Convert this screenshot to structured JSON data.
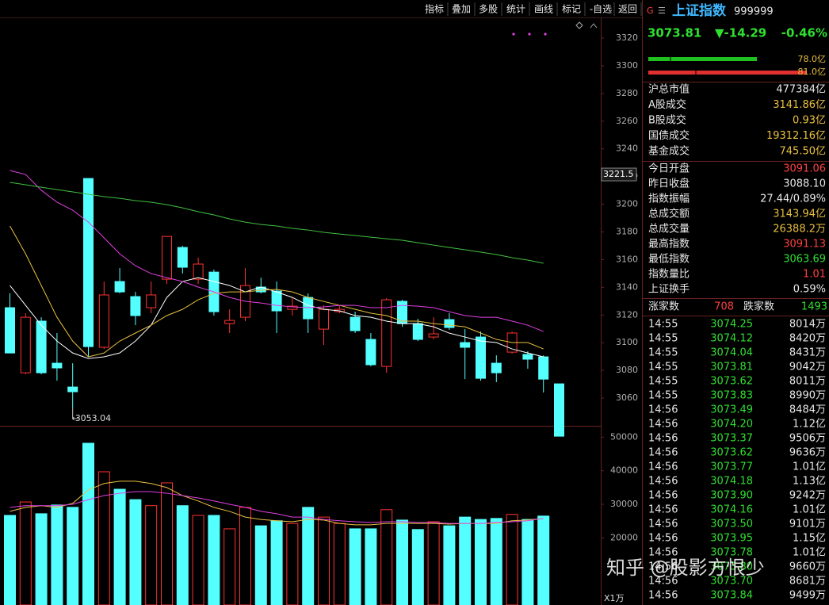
{
  "toolbar": {
    "items": [
      "指标",
      "叠加",
      "多股",
      "统计",
      "画线",
      "标记",
      "-自选",
      "返回"
    ]
  },
  "chart": {
    "type": "candlestick",
    "ylim": [
      3040,
      3334.9
    ],
    "yticks": [
      3060,
      3080,
      3100,
      3120,
      3140,
      3160,
      3180,
      3200,
      3220,
      3240,
      3260,
      3280,
      3300,
      3320
    ],
    "up_color": "#ff3232",
    "down_color": "#54ffff",
    "cursor_price": 3221.5,
    "open": [
      3125.3,
      3078.3,
      3115.6,
      3085.2,
      3068.0,
      3218.6,
      3096.7,
      3144.2,
      3133.3,
      3125.3,
      3145.9,
      3168.8,
      3145.9,
      3151.0,
      3113.8,
      3118.4,
      3140.2,
      3137.3,
      3124.1,
      3132.7,
      3109.8,
      3122.4,
      3118.4,
      3102.4,
      3082.9,
      3129.9,
      3113.8,
      3104.1,
      3116.7,
      3100.1,
      3104.1,
      3085.2,
      3093.2,
      3091.5,
      3089.8,
      3070.3
    ],
    "high": [
      3135.6,
      3121.3,
      3118.4,
      3107.0,
      3085.2,
      3218.6,
      3144.2,
      3153.9,
      3136.7,
      3144.2,
      3176.8,
      3170.0,
      3161.4,
      3152.8,
      3124.1,
      3153.9,
      3147.0,
      3144.2,
      3132.7,
      3135.6,
      3127.0,
      3127.0,
      3122.4,
      3107.0,
      3132.2,
      3131.0,
      3117.3,
      3118.4,
      3121.3,
      3109.8,
      3108.1,
      3090.9,
      3108.1,
      3093.8,
      3090.9,
      3070.3
    ],
    "low": [
      3092.6,
      3077.2,
      3077.2,
      3072.6,
      3053.04,
      3089.8,
      3095.5,
      3135.6,
      3112.7,
      3121.3,
      3142.5,
      3149.9,
      3142.5,
      3119.6,
      3107.0,
      3115.6,
      3135.6,
      3107.0,
      3119.6,
      3107.0,
      3098.4,
      3121.3,
      3107.0,
      3082.9,
      3078.3,
      3111.5,
      3101.2,
      3102.4,
      3109.3,
      3073.7,
      3072.6,
      3071.5,
      3092.1,
      3081.2,
      3064.0,
      3032.5
    ],
    "close": [
      3092.6,
      3118.4,
      3078.3,
      3081.8,
      3064.6,
      3097.2,
      3134.5,
      3136.7,
      3119.6,
      3134.5,
      3176.8,
      3154.5,
      3156.8,
      3122.4,
      3116.1,
      3141.3,
      3136.7,
      3123.0,
      3126.4,
      3117.3,
      3124.1,
      3124.1,
      3108.7,
      3084.1,
      3131.0,
      3113.8,
      3102.4,
      3106.4,
      3111.0,
      3096.7,
      3074.3,
      3078.3,
      3107.0,
      3088.1,
      3073.7,
      3032.5
    ],
    "ma": [
      {
        "color": "#ffffff",
        "values": [
          3141.3,
          3127.0,
          3112.7,
          3101.2,
          3092.6,
          3088.6,
          3089.8,
          3092.6,
          3101.2,
          3112.7,
          3132.7,
          3144.2,
          3147.0,
          3144.2,
          3141.3,
          3136.7,
          3140.2,
          3136.7,
          3132.7,
          3127.0,
          3124.1,
          3123.0,
          3119.6,
          3118.4,
          3115.6,
          3113.8,
          3113.8,
          3111.5,
          3106.9,
          3104.1,
          3101.2,
          3100.1,
          3095.5,
          3092.6,
          3089.8,
          null
        ]
      },
      {
        "color": "#e8c040",
        "values": [
          3184.3,
          3164.2,
          3141.3,
          3118.4,
          3101.2,
          3089.8,
          3092.6,
          3101.2,
          3107.0,
          3112.7,
          3119.6,
          3124.1,
          3131.0,
          3135.6,
          3136.7,
          3136.7,
          3137.9,
          3138.5,
          3136.7,
          3132.7,
          3129.8,
          3127.0,
          3124.1,
          3121.3,
          3119.6,
          3115.6,
          3115.6,
          3113.8,
          3112.7,
          3111.5,
          3107.0,
          3102.4,
          3100.1,
          3100.1,
          3095.5,
          null
        ]
      },
      {
        "color": "#e040e0",
        "values": [
          3224.4,
          3221.5,
          3210.1,
          3201.5,
          3195.7,
          3187.1,
          3175.7,
          3164.2,
          3155.6,
          3149.9,
          3147.0,
          3144.2,
          3140.2,
          3136.7,
          3132.7,
          3129.9,
          3128.7,
          3127.0,
          3125.9,
          3125.3,
          3125.9,
          3127.0,
          3127.0,
          3125.3,
          3125.3,
          3127.0,
          3126.4,
          3125.3,
          3122.4,
          3119.6,
          3118.4,
          3118.4,
          3115.6,
          3112.7,
          3108.1,
          null
        ]
      },
      {
        "color": "#40c040",
        "values": [
          3215.8,
          3214.1,
          3212.3,
          3210.6,
          3208.9,
          3207.2,
          3205.5,
          3204.3,
          3202.6,
          3201.5,
          3199.7,
          3197.4,
          3194.6,
          3192.3,
          3189.4,
          3187.1,
          3185.4,
          3184.3,
          3182.6,
          3181.4,
          3179.7,
          3178.5,
          3177.4,
          3176.2,
          3175.1,
          3174.0,
          3172.2,
          3170.5,
          3168.8,
          3167.1,
          3165.4,
          3163.7,
          3161.4,
          3159.7,
          3157.4,
          null
        ]
      }
    ],
    "volume": {
      "ylim": [
        0,
        53400
      ],
      "yticks": [
        20000,
        30000,
        40000,
        50000
      ],
      "unit": "X1万",
      "values": [
        26700,
        30700,
        27200,
        29800,
        29100,
        48200,
        39700,
        34500,
        31400,
        29600,
        36400,
        29600,
        26700,
        26700,
        22700,
        29100,
        23600,
        25100,
        24300,
        29100,
        26200,
        24300,
        22700,
        22700,
        28400,
        25300,
        22500,
        24800,
        23600,
        26200,
        25500,
        25800,
        27000,
        25500,
        26500,
        null
      ],
      "ma": [
        {
          "color": "#e8c040",
          "values": [
            27900,
            29100,
            29600,
            29100,
            30300,
            34300,
            36200,
            36900,
            36900,
            36200,
            35000,
            32600,
            31000,
            29100,
            27900,
            26200,
            25500,
            25100,
            24800,
            25500,
            25300,
            24300,
            23900,
            23900,
            24300,
            24300,
            24300,
            24300,
            24100,
            24300,
            24300,
            24300,
            25100,
            25300,
            25800,
            null
          ]
        },
        {
          "color": "#e040e0",
          "values": [
            29100,
            29600,
            29600,
            29600,
            30000,
            31400,
            32600,
            33300,
            33800,
            33800,
            33300,
            32600,
            31900,
            31000,
            30000,
            29100,
            27900,
            27200,
            26200,
            26200,
            25500,
            25100,
            24800,
            24600,
            24800,
            24800,
            24600,
            24600,
            24300,
            24300,
            24300,
            24600,
            24800,
            25100,
            25800,
            null
          ]
        }
      ]
    }
  },
  "header": {
    "badge": "G",
    "menu": "☰",
    "name": "上证指数",
    "code": "999999",
    "price": "3073.81",
    "change": "▼-14.29",
    "percent": "-0.46%",
    "buy": "78.0亿",
    "sell": "81.0亿"
  },
  "stats": [
    {
      "label": "沪总市值",
      "value": "477384亿",
      "color": "#e8e8e8"
    },
    {
      "label": "A股成交",
      "value": "3141.86亿",
      "color": "#e8c040"
    },
    {
      "label": "B股成交",
      "value": "0.93亿",
      "color": "#e8c040"
    },
    {
      "label": "国债成交",
      "value": "19312.16亿",
      "color": "#e8c040"
    },
    {
      "label": "基金成交",
      "value": "745.50亿",
      "color": "#e8c040"
    },
    {
      "label": "今日开盘",
      "value": "3091.06",
      "color": "#ff4040"
    },
    {
      "label": "昨日收盘",
      "value": "3088.10",
      "color": "#e8e8e8"
    },
    {
      "label": "指数振幅",
      "value": "27.44/0.89%",
      "color": "#e8e8e8"
    },
    {
      "label": "总成交额",
      "value": "3143.94亿",
      "color": "#e8c040"
    },
    {
      "label": "总成交量",
      "value": "26388.2万",
      "color": "#e8c040"
    },
    {
      "label": "最高指数",
      "value": "3091.13",
      "color": "#ff4040"
    },
    {
      "label": "最低指数",
      "value": "3063.69",
      "color": "#30e030"
    },
    {
      "label": "指数量比",
      "value": "1.01",
      "color": "#ff4040"
    },
    {
      "label": "上证换手",
      "value": "0.59%",
      "color": "#e8e8e8"
    }
  ],
  "breadth": {
    "up_label": "涨家数",
    "up": "708",
    "down_label": "跌家数",
    "down": "1493"
  },
  "ticks": [
    [
      "14:55",
      "3074.25",
      "8014万"
    ],
    [
      "14:55",
      "3074.12",
      "8420万"
    ],
    [
      "14:55",
      "3074.04",
      "8431万"
    ],
    [
      "14:55",
      "3073.81",
      "9042万"
    ],
    [
      "14:55",
      "3073.62",
      "8011万"
    ],
    [
      "14:55",
      "3073.83",
      "8990万"
    ],
    [
      "14:56",
      "3073.49",
      "8484万"
    ],
    [
      "14:56",
      "3074.20",
      "1.12亿"
    ],
    [
      "14:56",
      "3073.37",
      "9506万"
    ],
    [
      "14:56",
      "3073.62",
      "9636万"
    ],
    [
      "14:56",
      "3073.77",
      "1.01亿"
    ],
    [
      "14:56",
      "3074.18",
      "1.13亿"
    ],
    [
      "14:56",
      "3073.90",
      "9242万"
    ],
    [
      "14:56",
      "3074.16",
      "1.01亿"
    ],
    [
      "14:56",
      "3073.50",
      "9101万"
    ],
    [
      "14:56",
      "3073.95",
      "1.15亿"
    ],
    [
      "14:56",
      "3073.78",
      "1.01亿"
    ],
    [
      "14:56",
      "3073.80",
      "9660万"
    ],
    [
      "14:56",
      "3073.70",
      "8681万"
    ],
    [
      "14:56",
      "3073.84",
      "9499万"
    ]
  ],
  "watermark": "知乎 @股影方恨少"
}
